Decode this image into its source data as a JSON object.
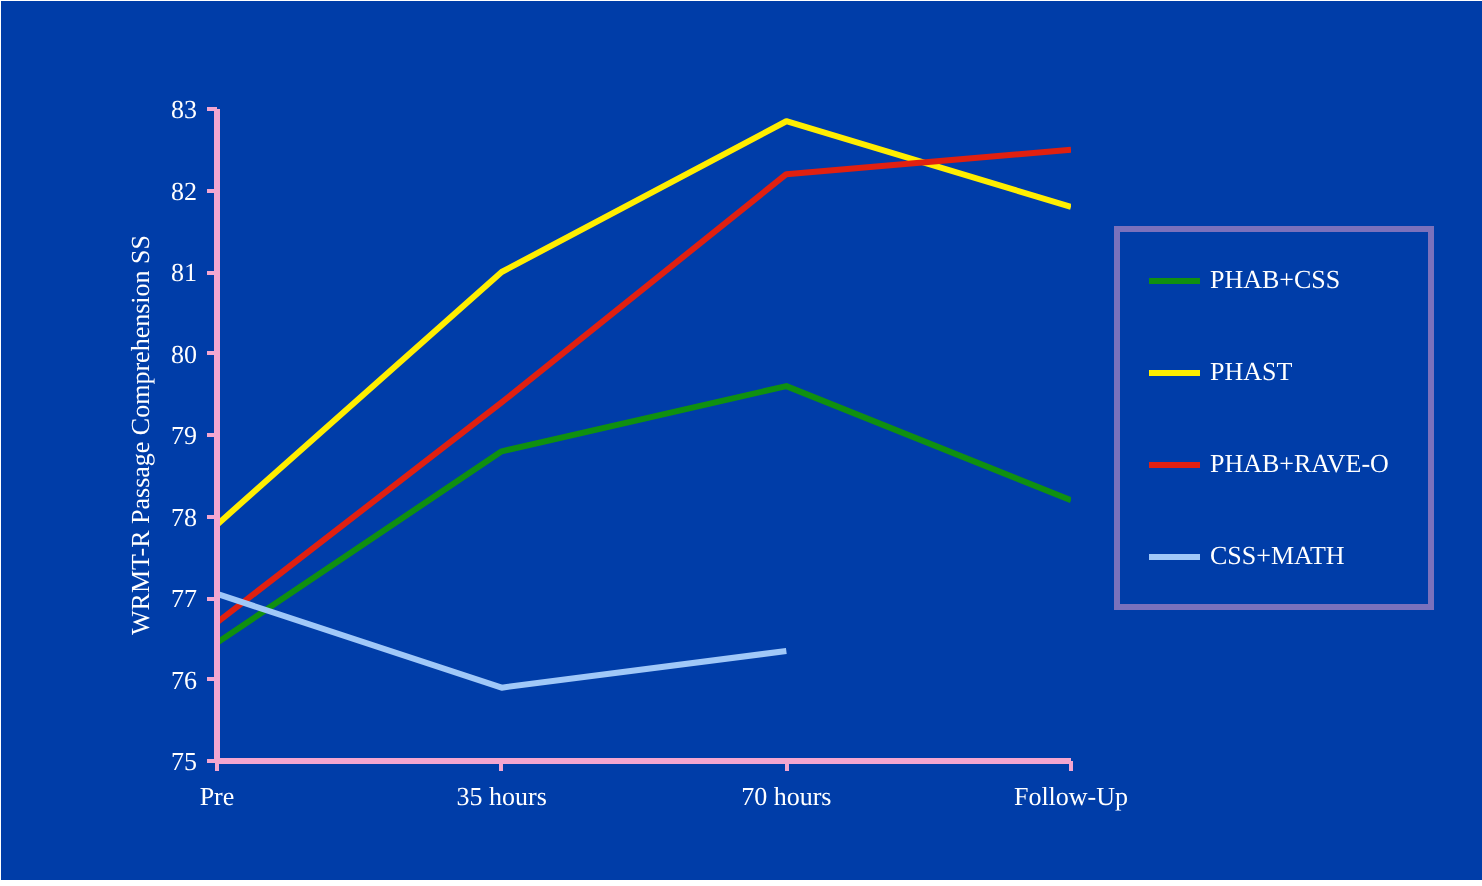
{
  "chart_data": {
    "type": "line",
    "ylabel": "WRMT-R Passage Comprehension SS",
    "categories": [
      "Pre",
      "35 hours",
      "70 hours",
      "Follow-Up"
    ],
    "series": [
      {
        "name": "PHAB+CSS",
        "color": "#109010",
        "values": [
          76.45,
          78.8,
          79.6,
          78.2
        ]
      },
      {
        "name": "PHAST",
        "color": "#ffee00",
        "values": [
          77.9,
          81.0,
          82.85,
          81.8
        ]
      },
      {
        "name": "PHAB+RAVE-O",
        "color": "#e02010",
        "values": [
          76.7,
          79.4,
          82.2,
          82.5
        ]
      },
      {
        "name": "CSS+MATH",
        "color": "#a0c8f8",
        "values": [
          77.05,
          75.9,
          76.35,
          null
        ]
      }
    ],
    "ylim": [
      75,
      83
    ],
    "yticks": [
      75,
      76,
      77,
      78,
      79,
      80,
      81,
      82,
      83
    ],
    "grid": false,
    "legend": "right",
    "marker": "none",
    "line_style": "solid"
  }
}
